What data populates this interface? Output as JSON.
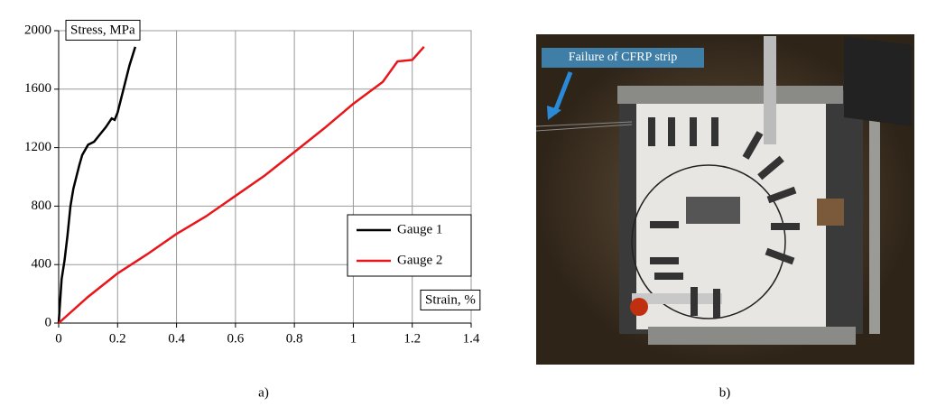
{
  "chart_data": {
    "type": "line",
    "x_label": "Strain, %",
    "y_label": "Stress, MPa",
    "xlim": [
      0,
      1.4
    ],
    "xticks": [
      0,
      0.2,
      0.4,
      0.6,
      0.8,
      1,
      1.2,
      1.4
    ],
    "ylim": [
      0,
      2000
    ],
    "yticks": [
      0,
      400,
      800,
      1200,
      1600,
      2000
    ],
    "grid": true,
    "legend": "lower right",
    "series": [
      {
        "name": "Gauge 1",
        "color": "#000000",
        "x": [
          0,
          0.005,
          0.01,
          0.02,
          0.03,
          0.04,
          0.05,
          0.06,
          0.07,
          0.08,
          0.1,
          0.12,
          0.14,
          0.16,
          0.18,
          0.19,
          0.2,
          0.22,
          0.24,
          0.26
        ],
        "values": [
          0,
          150,
          300,
          430,
          600,
          800,
          920,
          1000,
          1080,
          1150,
          1220,
          1240,
          1290,
          1340,
          1400,
          1390,
          1440,
          1600,
          1760,
          1890
        ]
      },
      {
        "name": "Gauge 2",
        "color": "#e8161b",
        "x": [
          0,
          0.1,
          0.2,
          0.3,
          0.4,
          0.5,
          0.6,
          0.7,
          0.8,
          0.9,
          1.0,
          1.1,
          1.15,
          1.2,
          1.24
        ],
        "values": [
          0,
          180,
          340,
          470,
          610,
          730,
          870,
          1010,
          1170,
          1330,
          1500,
          1650,
          1790,
          1800,
          1890
        ]
      }
    ]
  },
  "photo_annotation": "Failure of CFRP strip",
  "captions": [
    "a)",
    "b)"
  ]
}
